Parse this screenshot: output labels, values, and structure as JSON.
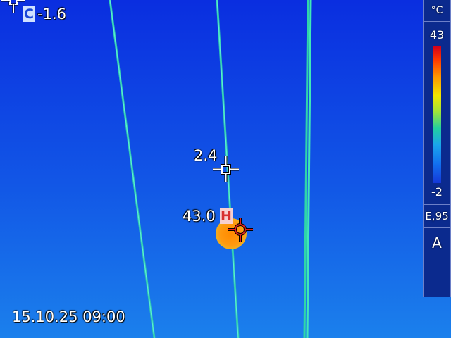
{
  "measurement": {
    "cold_spot": {
      "badge": "C",
      "value": "-1.6"
    },
    "center_spot": {
      "value": "2.4"
    },
    "hot_spot": {
      "badge": "H",
      "value": "43.0"
    }
  },
  "scale": {
    "unit": "°C",
    "max": "43",
    "min": "-2",
    "emissivity": "E,95",
    "mode": "A"
  },
  "status": {
    "datetime": "15.10.25 09:00"
  },
  "colors": {
    "sky_top": "#0a2ee0",
    "sky_bottom": "#1878ea",
    "wire": "#3fe0c0",
    "hot": "#ff8c10"
  }
}
